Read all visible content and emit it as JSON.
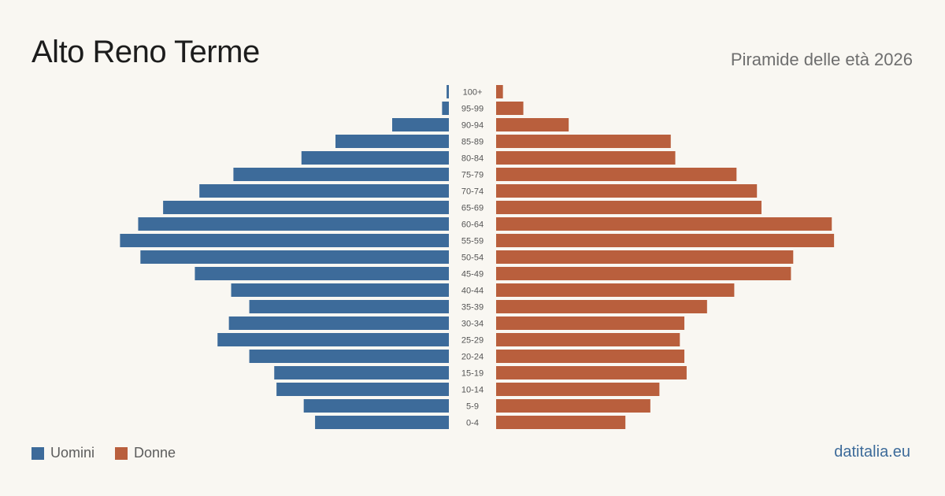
{
  "header": {
    "title": "Alto Reno Terme",
    "subtitle": "Piramide delle età 2026"
  },
  "legend": {
    "men_label": "Uomini",
    "women_label": "Donne"
  },
  "footer": {
    "source": "datitalia.eu"
  },
  "colors": {
    "men": "#3d6b9a",
    "women": "#b95f3d",
    "background": "#f9f7f2"
  },
  "chart_data": {
    "type": "bar",
    "orientation": "horizontal-pyramid",
    "title": "Alto Reno Terme",
    "subtitle": "Piramide delle età 2026",
    "categories": [
      "100+",
      "95-99",
      "90-94",
      "85-89",
      "80-84",
      "75-79",
      "70-74",
      "65-69",
      "60-64",
      "55-59",
      "50-54",
      "45-49",
      "40-44",
      "35-39",
      "30-34",
      "25-29",
      "20-24",
      "15-19",
      "10-14",
      "5-9",
      "0-4"
    ],
    "series": [
      {
        "name": "Uomini",
        "values": [
          1,
          3,
          25,
          50,
          65,
          95,
          110,
          126,
          137,
          145,
          136,
          112,
          96,
          88,
          97,
          102,
          88,
          77,
          76,
          64,
          59
        ]
      },
      {
        "name": "Donne",
        "values": [
          3,
          12,
          32,
          77,
          79,
          106,
          115,
          117,
          148,
          149,
          131,
          130,
          105,
          93,
          83,
          81,
          83,
          84,
          72,
          68,
          57
        ]
      }
    ],
    "legend_position": "bottom-left",
    "grid": false
  }
}
